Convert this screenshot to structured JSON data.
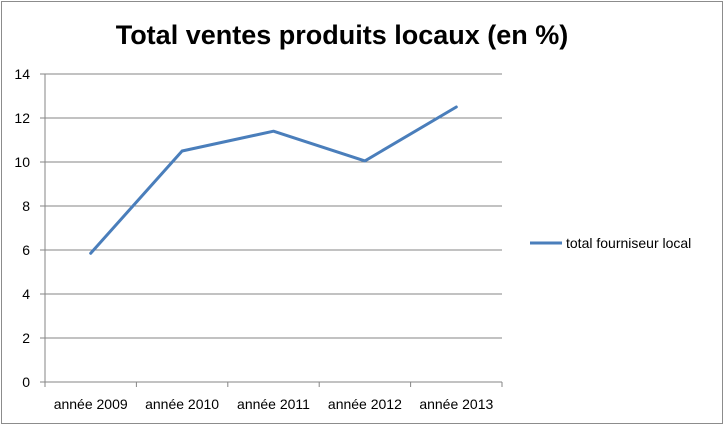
{
  "chart_data": {
    "type": "line",
    "title": "Total ventes produits locaux (en %)",
    "categories": [
      "année 2009",
      "année 2010",
      "année 2011",
      "année 2012",
      "année 2013"
    ],
    "series": [
      {
        "name": "total fourniseur local",
        "values": [
          5.85,
          10.5,
          11.4,
          10.05,
          12.5
        ],
        "color": "#4a7ebb"
      }
    ],
    "ylim": [
      0,
      14
    ],
    "yticks": [
      0,
      2,
      4,
      6,
      8,
      10,
      12,
      14
    ],
    "grid": true,
    "legend_position": "right"
  }
}
